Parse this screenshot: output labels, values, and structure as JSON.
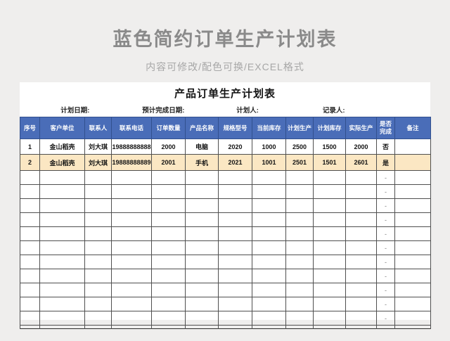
{
  "banner": {
    "title": "蓝色简约订单生产计划表",
    "subtitle": "内容可修改/配色可换/EXCEL格式"
  },
  "colors": {
    "title_text": "#8a8a8a",
    "subtitle_text": "#a7a7a7",
    "page_background": "#efeeed",
    "sheet_background": "#ffffff",
    "table_header_bg": "#4a6db8",
    "table_header_text": "#ffffff",
    "highlight_row_bg": "#fbe7c3"
  },
  "sheet": {
    "title": "产品订单生产计划表",
    "meta": [
      "计划日期:",
      "预计完成日期:",
      "计划人:",
      "记录人:"
    ],
    "table": {
      "columns": [
        "序号",
        "客户单位",
        "联系人",
        "联系电话",
        "订单数量",
        "产品名称",
        "规格型号",
        "当前库存",
        "计划生产",
        "计划库存",
        "实际生产",
        "是否完成",
        "备注"
      ],
      "rows": [
        [
          "1",
          "金山稻壳",
          "刘大琪",
          "19888888888",
          "2000",
          "电脑",
          "2020",
          "1000",
          "2500",
          "1500",
          "2000",
          "否",
          ""
        ],
        [
          "2",
          "金山稻壳",
          "刘大琪",
          "19888888889",
          "2001",
          "手机",
          "2021",
          "1001",
          "2501",
          "1501",
          "2601",
          "是",
          ""
        ]
      ],
      "empty_row_count": 11,
      "empty_row_placeholder": "-",
      "placeholder_column": "是否完成"
    }
  }
}
